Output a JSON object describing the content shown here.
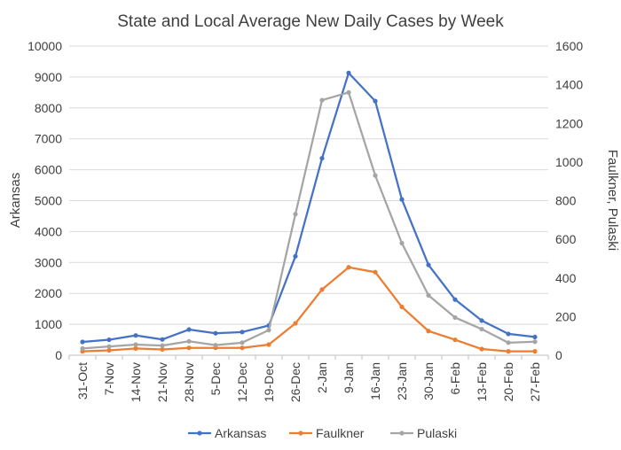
{
  "chart_data": {
    "type": "line",
    "title": "State and Local Average New Daily Cases by Week",
    "xlabel": "",
    "ylabel": "Arkansas",
    "y2label": "Faulkner, Pulaski",
    "categories": [
      "31-Oct",
      "7-Nov",
      "14-Nov",
      "21-Nov",
      "28-Nov",
      "5-Dec",
      "12-Dec",
      "19-Dec",
      "26-Dec",
      "2-Jan",
      "9-Jan",
      "16-Jan",
      "23-Jan",
      "30-Jan",
      "6-Feb",
      "13-Feb",
      "20-Feb",
      "27-Feb"
    ],
    "ylim": [
      0,
      10000
    ],
    "y2lim": [
      0,
      1600
    ],
    "yticks": [
      "0",
      "1000",
      "2000",
      "3000",
      "4000",
      "5000",
      "6000",
      "7000",
      "8000",
      "9000",
      "10000"
    ],
    "y2ticks": [
      "0",
      "200",
      "400",
      "600",
      "800",
      "1000",
      "1200",
      "1400",
      "1600"
    ],
    "grid": true,
    "legend": "bottom",
    "series": [
      {
        "name": "Arkansas",
        "axis": "left",
        "color": "#4472C4",
        "values": [
          430,
          500,
          640,
          510,
          830,
          710,
          750,
          960,
          3200,
          6370,
          9130,
          8220,
          5040,
          2920,
          1800,
          1120,
          690,
          590
        ]
      },
      {
        "name": "Faulkner",
        "axis": "right",
        "color": "#ED7D31",
        "values": [
          20,
          25,
          35,
          30,
          38,
          38,
          38,
          55,
          165,
          340,
          455,
          430,
          250,
          125,
          80,
          32,
          20,
          20
        ]
      },
      {
        "name": "Pulaski",
        "axis": "right",
        "color": "#A5A5A5",
        "values": [
          35,
          45,
          55,
          50,
          72,
          52,
          65,
          130,
          730,
          1320,
          1360,
          930,
          580,
          310,
          195,
          135,
          65,
          70
        ]
      }
    ]
  }
}
